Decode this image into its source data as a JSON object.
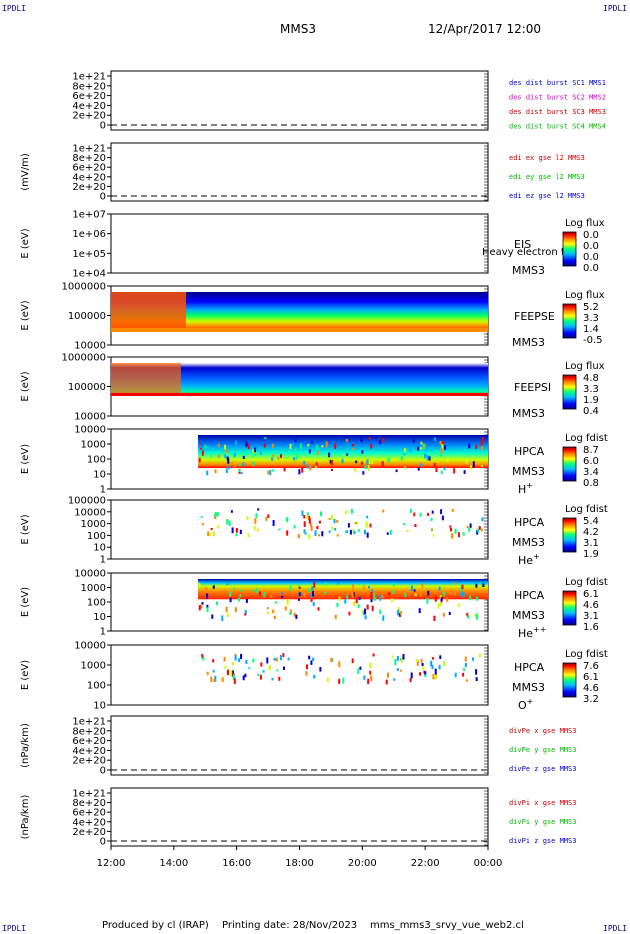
{
  "header": {
    "corner_label": "IPDLI",
    "spacecraft": "MMS3",
    "datetime": "12/Apr/2017 12:00"
  },
  "footer": {
    "produced_by": "Produced by cl (IRAP)",
    "printing_date": "Printing date: 28/Nov/2023",
    "script": "mms_mms3_srvy_vue_web2.cl"
  },
  "colors": {
    "legend_blue": "#0000cc",
    "legend_magenta": "#cc00cc",
    "legend_red": "#cc0000",
    "legend_green": "#00bb00"
  },
  "colorbar_gradient": [
    "#00007f",
    "#0000ff",
    "#00bfff",
    "#00ff80",
    "#ffff00",
    "#ff8000",
    "#ff0000",
    "#8b0000"
  ],
  "chart_data": [
    {
      "type": "line",
      "ylabel": "",
      "yticks": [
        "1e+21",
        "8e+20",
        "6e+20",
        "4e+20",
        "2e+20",
        "0"
      ],
      "legend": [
        {
          "text": "des dist burst SC1 MMS1",
          "color": "#0000cc"
        },
        {
          "text": "des dist burst SC2 MMS2",
          "color": "#cc00cc"
        },
        {
          "text": "des dist burst SC3 MMS3",
          "color": "#cc0000"
        },
        {
          "text": "des dist burst SC4 MMS4",
          "color": "#00bb00"
        }
      ],
      "series": []
    },
    {
      "type": "line",
      "ylabel": "(mV/m)",
      "yticks": [
        "1e+21",
        "8e+20",
        "6e+20",
        "4e+20",
        "2e+20",
        "0"
      ],
      "legend": [
        {
          "text": "edi ex gse l2 MMS3",
          "color": "#cc0000"
        },
        {
          "text": "edi ey gse l2 MMS3",
          "color": "#00bb00"
        },
        {
          "text": "edi ez gse l2 MMS3",
          "color": "#0000cc"
        }
      ],
      "series": []
    },
    {
      "type": "heatmap",
      "ylabel": "E (eV)",
      "yticks": [
        "1e+07",
        "1e+06",
        "1e+05",
        "1e+04"
      ],
      "instrument": [
        "EIS",
        "MMS3"
      ],
      "overlay_text": "Heavy electron to",
      "colorbar": {
        "title": "Log flux",
        "ticks": [
          "0.0",
          "0.0",
          "0.0",
          "0.0"
        ]
      }
    },
    {
      "type": "heatmap",
      "ylabel": "E (eV)",
      "yticks": [
        "1000000",
        "100000",
        "10000"
      ],
      "instrument": [
        "FEEPSE",
        "MMS3"
      ],
      "colorbar": {
        "title": "Log flux",
        "ticks": [
          "5.2",
          "3.3",
          "1.4",
          "-0.5"
        ]
      }
    },
    {
      "type": "heatmap",
      "ylabel": "E (eV)",
      "yticks": [
        "1000000",
        "100000",
        "10000"
      ],
      "instrument": [
        "FEEPSI",
        "MMS3"
      ],
      "colorbar": {
        "title": "Log flux",
        "ticks": [
          "4.8",
          "3.3",
          "1.9",
          "0.4"
        ]
      }
    },
    {
      "type": "heatmap",
      "ylabel": "E (eV)",
      "yticks": [
        "10000",
        "1000",
        "100",
        "10",
        "1"
      ],
      "instrument": [
        "HPCA",
        "MMS3"
      ],
      "species": {
        "base": "H",
        "sup": "+"
      },
      "colorbar": {
        "title": "Log fdist",
        "ticks": [
          "8.7",
          "6.0",
          "3.4",
          "0.8"
        ]
      }
    },
    {
      "type": "heatmap",
      "ylabel": "E (eV)",
      "yticks": [
        "100000",
        "10000",
        "1000",
        "100",
        "10",
        "1"
      ],
      "instrument": [
        "HPCA",
        "MMS3"
      ],
      "species": {
        "base": "He",
        "sup": "+"
      },
      "colorbar": {
        "title": "Log fdist",
        "ticks": [
          "5.4",
          "4.2",
          "3.1",
          "1.9"
        ]
      }
    },
    {
      "type": "heatmap",
      "ylabel": "E (eV)",
      "yticks": [
        "10000",
        "1000",
        "100",
        "10",
        "1"
      ],
      "instrument": [
        "HPCA",
        "MMS3"
      ],
      "species": {
        "base": "He",
        "sup": "++"
      },
      "colorbar": {
        "title": "Log fdist",
        "ticks": [
          "6.1",
          "4.6",
          "3.1",
          "1.6"
        ]
      }
    },
    {
      "type": "heatmap",
      "ylabel": "E (eV)",
      "yticks": [
        "10000",
        "1000",
        "100",
        "10"
      ],
      "instrument": [
        "HPCA",
        "MMS3"
      ],
      "species": {
        "base": "O",
        "sup": "+"
      },
      "colorbar": {
        "title": "Log fdist",
        "ticks": [
          "7.6",
          "6.1",
          "4.6",
          "3.2"
        ]
      }
    },
    {
      "type": "line",
      "ylabel": "(nPa/km)",
      "yticks": [
        "1e+21",
        "8e+20",
        "6e+20",
        "4e+20",
        "2e+20",
        "0"
      ],
      "legend": [
        {
          "text": "divPe x gse MMS3",
          "color": "#cc0000"
        },
        {
          "text": "divPe y gse MMS3",
          "color": "#00bb00"
        },
        {
          "text": "divPe z gse MMS3",
          "color": "#0000cc"
        }
      ],
      "series": []
    },
    {
      "type": "line",
      "ylabel": "(nPa/km)",
      "yticks": [
        "1e+21",
        "8e+20",
        "6e+20",
        "4e+20",
        "2e+20",
        "0"
      ],
      "legend": [
        {
          "text": "divPi x gse MMS3",
          "color": "#cc0000"
        },
        {
          "text": "divPi y gse MMS3",
          "color": "#00bb00"
        },
        {
          "text": "divPi z gse MMS3",
          "color": "#0000cc"
        }
      ],
      "series": []
    }
  ],
  "xaxis": {
    "ticks": [
      "12:00",
      "14:00",
      "16:00",
      "18:00",
      "20:00",
      "22:00",
      "00:00"
    ]
  }
}
